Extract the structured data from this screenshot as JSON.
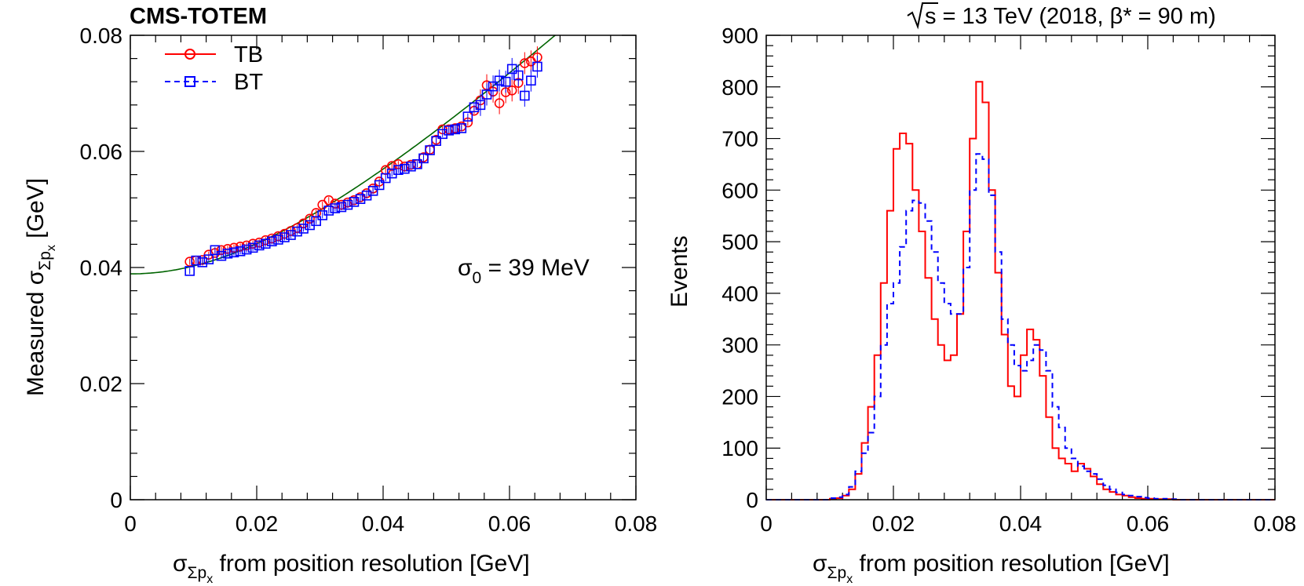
{
  "figure": {
    "experiment_label": "CMS-TOTEM",
    "energy_label_prefix": "s",
    "energy_label_rest": " = 13 TeV (2018, β* = 90 m)"
  },
  "chart_data": [
    {
      "type": "scatter",
      "xlabel_main": "σ",
      "xlabel_sub": "Σp",
      "xlabel_subsub": "x",
      "xlabel_rest": " from position resolution [GeV]",
      "ylabel_main": "Measured σ",
      "ylabel_sub": "Σp",
      "ylabel_subsub": "x",
      "ylabel_rest": " [GeV]",
      "xlim": [
        0,
        0.08
      ],
      "ylim": [
        0,
        0.08
      ],
      "xticks": [
        "0",
        "0.02",
        "0.04",
        "0.06",
        "0.08"
      ],
      "yticks": [
        "0",
        "0.02",
        "0.04",
        "0.06",
        "0.08"
      ],
      "annotation_main": "σ",
      "annotation_sub": "0",
      "annotation_rest": " = 39 MeV",
      "legend_position": "top-left",
      "fit": {
        "sigma0": 0.0389,
        "k": 1.04,
        "color": "#006400"
      },
      "series": [
        {
          "name": "TB",
          "color": "#ff0000",
          "marker": "circle",
          "points": [
            [
              0.0094,
              0.041
            ],
            [
              0.0104,
              0.0412
            ],
            [
              0.0114,
              0.0413
            ],
            [
              0.0124,
              0.0422
            ],
            [
              0.0134,
              0.0425
            ],
            [
              0.0144,
              0.043
            ],
            [
              0.0154,
              0.0432
            ],
            [
              0.0164,
              0.0434
            ],
            [
              0.0174,
              0.0436
            ],
            [
              0.0184,
              0.0438
            ],
            [
              0.0194,
              0.0441
            ],
            [
              0.0204,
              0.0443
            ],
            [
              0.0214,
              0.0447
            ],
            [
              0.0224,
              0.045
            ],
            [
              0.0234,
              0.0454
            ],
            [
              0.0244,
              0.0458
            ],
            [
              0.0254,
              0.0463
            ],
            [
              0.0264,
              0.0468
            ],
            [
              0.0274,
              0.0476
            ],
            [
              0.0284,
              0.0484
            ],
            [
              0.0294,
              0.0494
            ],
            [
              0.0304,
              0.0508
            ],
            [
              0.0314,
              0.0516
            ],
            [
              0.0324,
              0.051
            ],
            [
              0.0334,
              0.0508
            ],
            [
              0.0344,
              0.0512
            ],
            [
              0.0354,
              0.0516
            ],
            [
              0.0364,
              0.0521
            ],
            [
              0.0374,
              0.0528
            ],
            [
              0.0384,
              0.0536
            ],
            [
              0.0394,
              0.0548
            ],
            [
              0.0404,
              0.0568
            ],
            [
              0.0414,
              0.0575
            ],
            [
              0.0424,
              0.0578
            ],
            [
              0.0434,
              0.0574
            ],
            [
              0.0444,
              0.0577
            ],
            [
              0.0454,
              0.0578
            ],
            [
              0.0464,
              0.059
            ],
            [
              0.0474,
              0.0603
            ],
            [
              0.0484,
              0.062
            ],
            [
              0.0494,
              0.0638
            ],
            [
              0.0504,
              0.0638
            ],
            [
              0.0514,
              0.064
            ],
            [
              0.0524,
              0.0643
            ],
            [
              0.0534,
              0.065
            ],
            [
              0.0544,
              0.067
            ],
            [
              0.0554,
              0.0688
            ],
            [
              0.0564,
              0.0714
            ],
            [
              0.0574,
              0.0703
            ],
            [
              0.0584,
              0.0683
            ],
            [
              0.0594,
              0.0702
            ],
            [
              0.0604,
              0.0705
            ],
            [
              0.0614,
              0.0718
            ],
            [
              0.0624,
              0.0752
            ],
            [
              0.0634,
              0.0755
            ],
            [
              0.0644,
              0.0762
            ]
          ]
        },
        {
          "name": "BT",
          "color": "#0000ff",
          "marker": "square",
          "points": [
            [
              0.0094,
              0.0394
            ],
            [
              0.0104,
              0.0412
            ],
            [
              0.0114,
              0.0409
            ],
            [
              0.0124,
              0.0414
            ],
            [
              0.0134,
              0.043
            ],
            [
              0.0144,
              0.042
            ],
            [
              0.0154,
              0.0424
            ],
            [
              0.0164,
              0.0426
            ],
            [
              0.0174,
              0.0428
            ],
            [
              0.0184,
              0.0431
            ],
            [
              0.0194,
              0.0434
            ],
            [
              0.0204,
              0.0438
            ],
            [
              0.0214,
              0.0441
            ],
            [
              0.0224,
              0.0445
            ],
            [
              0.0234,
              0.0448
            ],
            [
              0.0244,
              0.0452
            ],
            [
              0.0254,
              0.0456
            ],
            [
              0.0264,
              0.0462
            ],
            [
              0.0274,
              0.0467
            ],
            [
              0.0284,
              0.0473
            ],
            [
              0.0294,
              0.048
            ],
            [
              0.0304,
              0.049
            ],
            [
              0.0314,
              0.0498
            ],
            [
              0.0324,
              0.0502
            ],
            [
              0.0334,
              0.0504
            ],
            [
              0.0344,
              0.0508
            ],
            [
              0.0354,
              0.0513
            ],
            [
              0.0364,
              0.0518
            ],
            [
              0.0374,
              0.0524
            ],
            [
              0.0384,
              0.0532
            ],
            [
              0.0394,
              0.0542
            ],
            [
              0.0404,
              0.0554
            ],
            [
              0.0414,
              0.0562
            ],
            [
              0.0424,
              0.0568
            ],
            [
              0.0434,
              0.057
            ],
            [
              0.0444,
              0.0574
            ],
            [
              0.0454,
              0.0578
            ],
            [
              0.0464,
              0.0588
            ],
            [
              0.0474,
              0.0602
            ],
            [
              0.0484,
              0.0618
            ],
            [
              0.0494,
              0.063
            ],
            [
              0.0504,
              0.0636
            ],
            [
              0.0514,
              0.0638
            ],
            [
              0.0524,
              0.064
            ],
            [
              0.0534,
              0.066
            ],
            [
              0.0544,
              0.0676
            ],
            [
              0.0554,
              0.068
            ],
            [
              0.0564,
              0.0698
            ],
            [
              0.0574,
              0.0712
            ],
            [
              0.0584,
              0.0722
            ],
            [
              0.0594,
              0.072
            ],
            [
              0.0604,
              0.0742
            ],
            [
              0.0614,
              0.0731
            ],
            [
              0.0624,
              0.0696
            ],
            [
              0.0634,
              0.0722
            ],
            [
              0.0644,
              0.0746
            ]
          ]
        }
      ]
    },
    {
      "type": "histogram",
      "xlabel_main": "σ",
      "xlabel_sub": "Σp",
      "xlabel_subsub": "x",
      "xlabel_rest": " from position resolution [GeV]",
      "ylabel": "Events",
      "xlim": [
        0,
        0.08
      ],
      "ylim": [
        0,
        900
      ],
      "xticks": [
        "0",
        "0.02",
        "0.04",
        "0.06",
        "0.08"
      ],
      "yticks": [
        "0",
        "100",
        "200",
        "300",
        "400",
        "500",
        "600",
        "700",
        "800",
        "900"
      ],
      "bin_start": 0,
      "bin_width": 0.001,
      "series": [
        {
          "name": "TB",
          "color": "#ff0000",
          "style": "solid",
          "values": [
            0,
            0,
            0,
            0,
            0,
            0,
            0,
            0,
            0,
            0,
            2,
            3,
            8,
            20,
            50,
            110,
            180,
            280,
            420,
            560,
            680,
            710,
            690,
            600,
            520,
            430,
            350,
            300,
            270,
            280,
            360,
            520,
            700,
            810,
            770,
            600,
            440,
            320,
            220,
            200,
            280,
            330,
            310,
            240,
            160,
            100,
            80,
            70,
            55,
            70,
            60,
            45,
            30,
            20,
            15,
            10,
            8,
            5,
            3,
            2,
            2,
            1,
            1,
            1,
            0,
            0,
            0,
            0,
            0,
            0,
            0,
            0,
            0,
            0,
            0,
            0,
            0,
            0,
            0,
            0
          ]
        },
        {
          "name": "BT",
          "color": "#0000ff",
          "style": "dashed",
          "values": [
            0,
            0,
            0,
            0,
            0,
            0,
            0,
            0,
            0,
            0,
            3,
            5,
            10,
            25,
            55,
            90,
            130,
            200,
            300,
            380,
            420,
            490,
            560,
            580,
            575,
            540,
            480,
            420,
            380,
            360,
            360,
            450,
            600,
            670,
            660,
            590,
            480,
            350,
            300,
            260,
            250,
            270,
            300,
            290,
            250,
            180,
            140,
            100,
            80,
            65,
            55,
            50,
            40,
            28,
            20,
            14,
            10,
            8,
            6,
            4,
            3,
            2,
            2,
            1,
            1,
            0,
            0,
            0,
            0,
            0,
            0,
            0,
            0,
            0,
            0,
            0,
            0,
            0,
            0,
            0
          ]
        }
      ]
    }
  ]
}
